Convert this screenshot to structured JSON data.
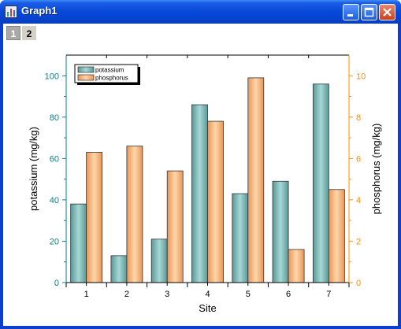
{
  "window": {
    "title": "Graph1"
  },
  "layer_tabs": [
    "1",
    "2"
  ],
  "chart_data": {
    "type": "bar",
    "categories": [
      "1",
      "2",
      "3",
      "4",
      "5",
      "6",
      "7"
    ],
    "xlabel": "Site",
    "series": [
      {
        "name": "potassium",
        "axis": "left",
        "values": [
          38,
          13,
          21,
          86,
          43,
          49,
          96
        ],
        "color": "#7bbab8"
      },
      {
        "name": "phosphorus",
        "axis": "right",
        "values": [
          6.3,
          6.6,
          5.4,
          7.8,
          9.9,
          1.6,
          4.5
        ],
        "color": "#f9b879"
      }
    ],
    "left_axis": {
      "label": "potassium (mg/kg)",
      "ylim": [
        0,
        110
      ],
      "ticks": [
        0,
        20,
        40,
        60,
        80,
        100
      ],
      "color": "#00868b"
    },
    "right_axis": {
      "label": "phosphorus (mg/kg)",
      "ylim": [
        0,
        11
      ],
      "ticks": [
        0,
        2,
        4,
        6,
        8,
        10
      ],
      "color": "#ff8c00"
    },
    "legend_position": "top-left",
    "grid": false
  }
}
